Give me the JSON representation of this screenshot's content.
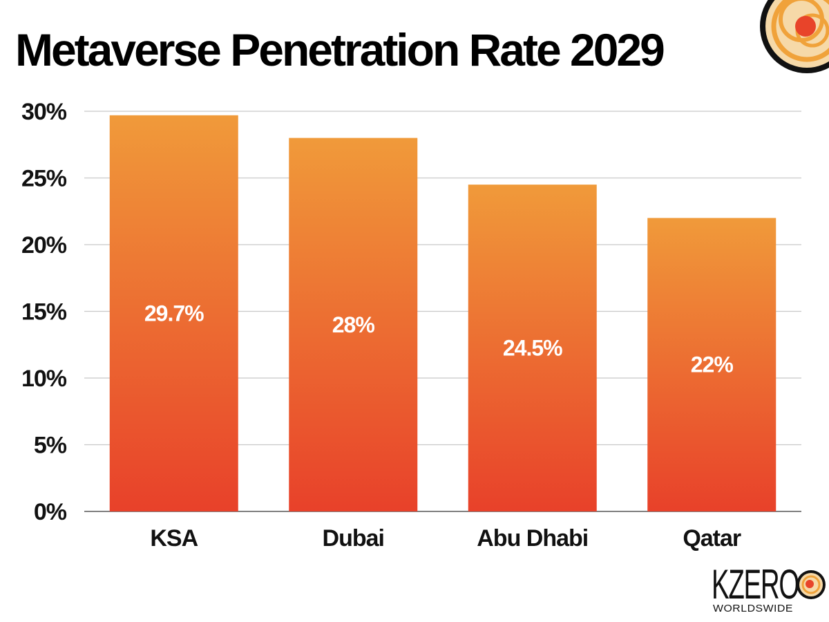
{
  "colors": {
    "bar_top": "#F09A3A",
    "bar_bottom": "#E8412A",
    "logo_orange": "#F0A23A",
    "logo_red": "#E8442A"
  },
  "logo": {
    "word": "KZERO",
    "sub": "WORLDSWIDE"
  },
  "chart_data": {
    "type": "bar",
    "title": "Metaverse Penetration Rate 2029",
    "xlabel": "",
    "ylabel": "",
    "categories": [
      "KSA",
      "Dubai",
      "Abu Dhabi",
      "Qatar"
    ],
    "values": [
      29.7,
      28,
      24.5,
      22
    ],
    "data_labels": [
      "29.7%",
      "28%",
      "24.5%",
      "22%"
    ],
    "ylim": [
      0,
      30
    ],
    "yticks": [
      0,
      5,
      10,
      15,
      20,
      25,
      30
    ],
    "ytick_labels": [
      "0%",
      "5%",
      "10%",
      "15%",
      "20%",
      "25%",
      "30%"
    ],
    "grid": true,
    "legend": "none"
  }
}
